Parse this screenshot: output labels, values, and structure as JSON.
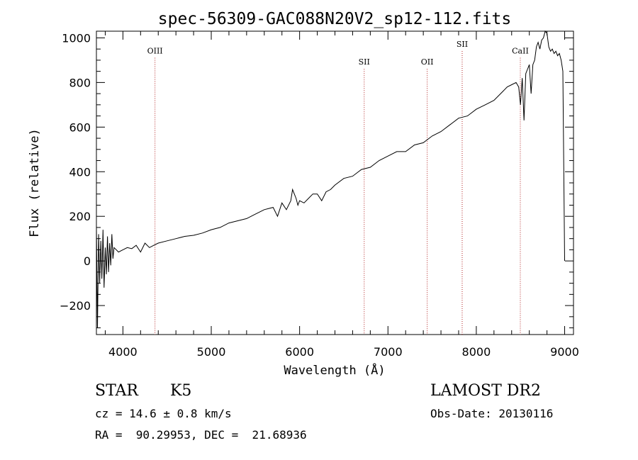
{
  "chart_data": {
    "type": "line",
    "title": "spec-56309-GAC088N20V2_sp12-112.fits",
    "xlabel": "Wavelength (Å)",
    "ylabel": "Flux (relative)",
    "xlim": [
      3700,
      9100
    ],
    "ylim": [
      -330,
      1030
    ],
    "xticks": [
      4000,
      5000,
      6000,
      7000,
      8000,
      9000
    ],
    "yticks": [
      -200,
      0,
      200,
      400,
      600,
      800,
      1000
    ],
    "series": [
      {
        "x": [
          3700,
          3712,
          3725,
          3737,
          3750,
          3762,
          3775,
          3787,
          3800,
          3812,
          3825,
          3837,
          3850,
          3862,
          3875,
          3887,
          3900,
          3950,
          4000,
          4050,
          4100,
          4150,
          4200,
          4250,
          4300,
          4350,
          4400,
          4500,
          4600,
          4700,
          4800,
          4900,
          5000,
          5100,
          5200,
          5300,
          5400,
          5500,
          5600,
          5700,
          5750,
          5800,
          5850,
          5900,
          5920,
          5940,
          5960,
          5980,
          6000,
          6050,
          6100,
          6150,
          6200,
          6250,
          6300,
          6350,
          6400,
          6500,
          6600,
          6700,
          6800,
          6900,
          7000,
          7100,
          7200,
          7300,
          7400,
          7500,
          7600,
          7700,
          7800,
          7900,
          8000,
          8100,
          8200,
          8300,
          8350,
          8400,
          8450,
          8480,
          8500,
          8520,
          8540,
          8560,
          8580,
          8600,
          8620,
          8640,
          8660,
          8680,
          8700,
          8720,
          8740,
          8760,
          8780,
          8800,
          8820,
          8840,
          8860,
          8880,
          8900,
          8920,
          8940,
          8960,
          8980,
          9000
        ],
        "y": [
          150,
          -300,
          120,
          -100,
          90,
          -80,
          140,
          -120,
          60,
          -60,
          110,
          -50,
          80,
          -20,
          120,
          10,
          60,
          40,
          50,
          60,
          55,
          70,
          40,
          80,
          60,
          70,
          80,
          90,
          100,
          110,
          115,
          125,
          140,
          150,
          170,
          180,
          190,
          210,
          230,
          240,
          200,
          260,
          230,
          270,
          320,
          300,
          280,
          250,
          270,
          260,
          280,
          300,
          300,
          270,
          310,
          320,
          340,
          370,
          380,
          410,
          420,
          450,
          470,
          490,
          490,
          520,
          530,
          560,
          580,
          610,
          640,
          650,
          680,
          700,
          720,
          760,
          780,
          790,
          800,
          780,
          700,
          820,
          630,
          840,
          860,
          880,
          750,
          880,
          900,
          960,
          980,
          950,
          990,
          1000,
          1030,
          1020,
          960,
          940,
          950,
          930,
          940,
          920,
          930,
          900,
          850,
          0
        ]
      }
    ],
    "annotations": [
      {
        "label": "OIII",
        "x": 4363,
        "label_y": 930
      },
      {
        "label": "SII",
        "x": 6731,
        "label_y": 880
      },
      {
        "label": "OII",
        "x": 7444,
        "label_y": 880
      },
      {
        "label": "SII",
        "x": 7840,
        "label_y": 960
      },
      {
        "label": "CaII",
        "x": 8498,
        "label_y": 930
      }
    ],
    "line_color": "#000000",
    "annotation_color": "#b22222",
    "grid": false,
    "legend": "none"
  },
  "info": {
    "object_class": "STAR",
    "subclass": "K5",
    "survey": "LAMOST DR2",
    "cz": "cz = 14.6 ± 0.8 km/s",
    "obs_date": "Obs-Date: 20130116",
    "radec": "RA =  90.29953, DEC =  21.68936"
  }
}
